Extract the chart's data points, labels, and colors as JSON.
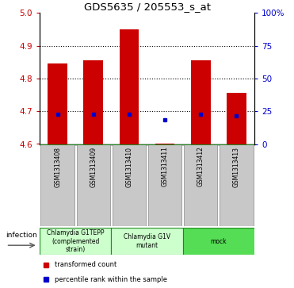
{
  "title": "GDS5635 / 205553_s_at",
  "samples": [
    "GSM1313408",
    "GSM1313409",
    "GSM1313410",
    "GSM1313411",
    "GSM1313412",
    "GSM1313413"
  ],
  "bar_tops": [
    4.845,
    4.855,
    4.95,
    4.602,
    4.855,
    4.755
  ],
  "bar_bottoms": [
    4.6,
    4.6,
    4.6,
    4.6,
    4.6,
    4.6
  ],
  "percentile_values": [
    4.69,
    4.69,
    4.69,
    4.675,
    4.69,
    4.685
  ],
  "ylim_left": [
    4.6,
    5.0
  ],
  "ylim_right": [
    0,
    100
  ],
  "yticks_left": [
    4.6,
    4.7,
    4.8,
    4.9,
    5.0
  ],
  "yticks_right": [
    0,
    25,
    50,
    75,
    100
  ],
  "ytick_labels_right": [
    "0",
    "25",
    "50",
    "75",
    "100%"
  ],
  "bar_color": "#cc0000",
  "percentile_color": "#0000cc",
  "group_starts": [
    0,
    2,
    4
  ],
  "group_ends": [
    2,
    4,
    6
  ],
  "group_colors": [
    "#ccffcc",
    "#ccffcc",
    "#55dd55"
  ],
  "group_labels": [
    "Chlamydia G1TEPP\n(complemented\nstrain)",
    "Chlamydia G1V\nmutant",
    "mock"
  ],
  "infection_label": "infection",
  "legend_items": [
    {
      "color": "#cc0000",
      "label": "transformed count"
    },
    {
      "color": "#0000cc",
      "label": "percentile rank within the sample"
    }
  ],
  "tick_color_left": "#cc0000",
  "tick_color_right": "#0000cc",
  "sample_box_color": "#c8c8c8",
  "bar_width": 0.55
}
